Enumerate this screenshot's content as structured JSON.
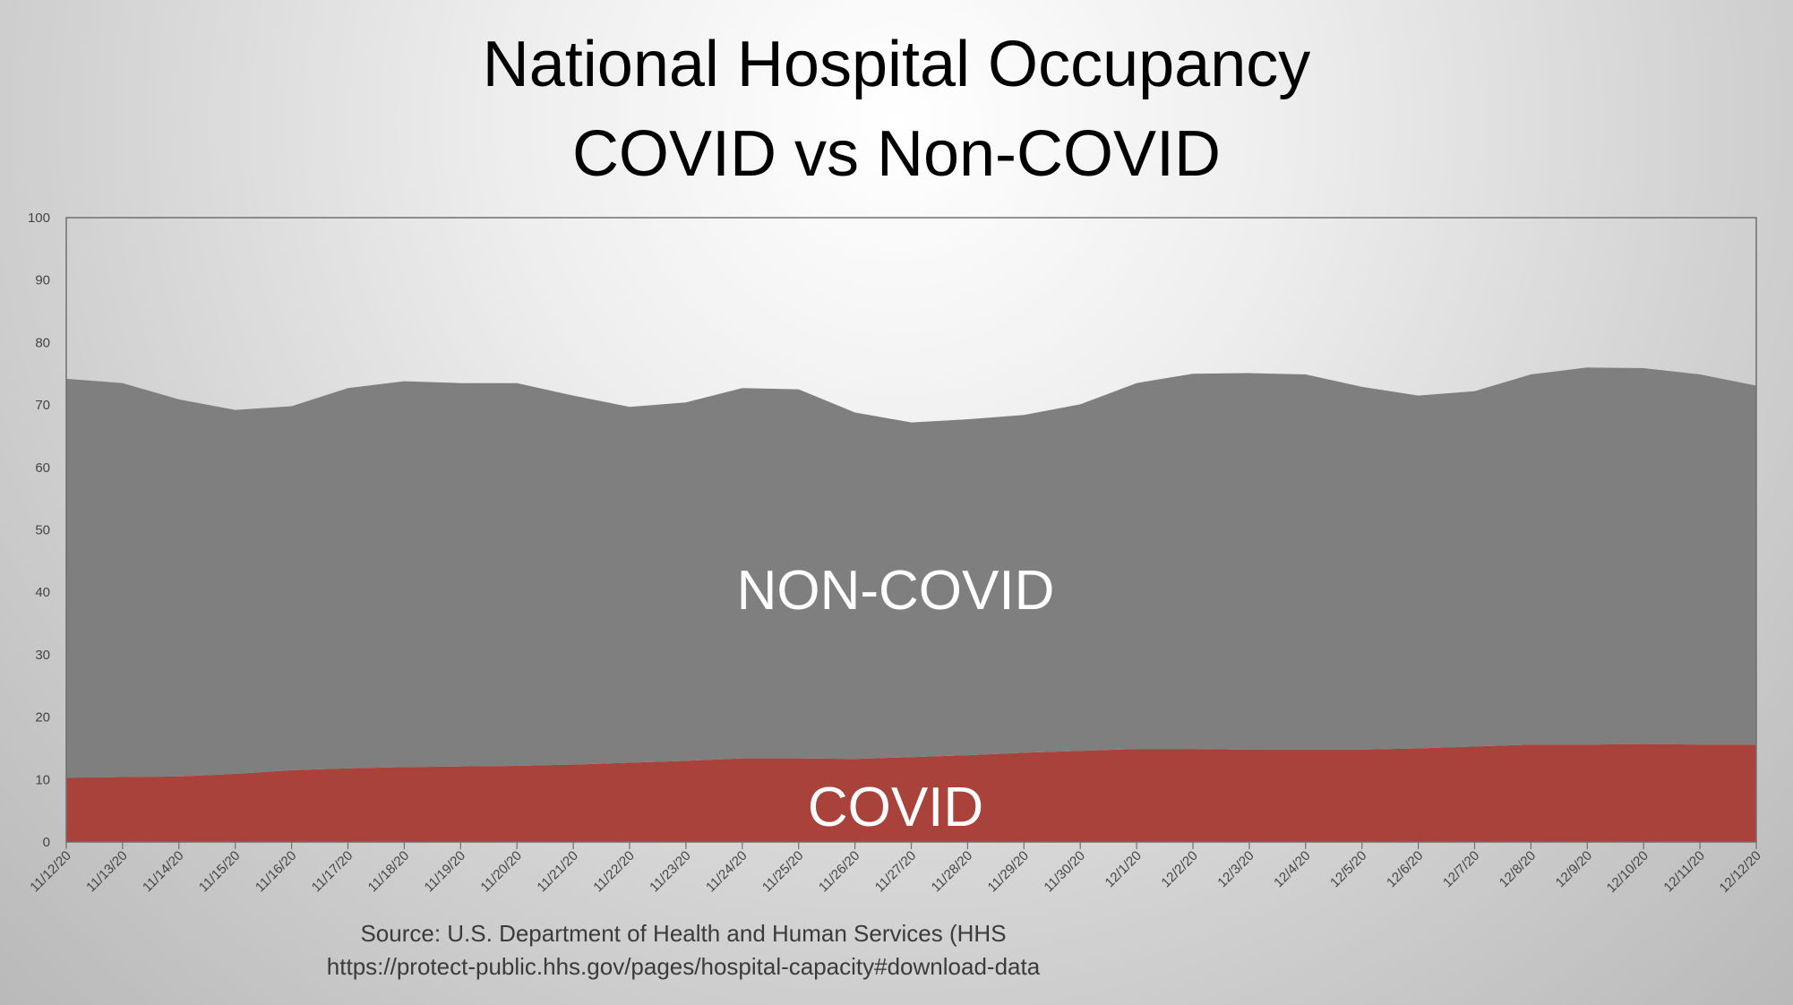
{
  "chart_data": {
    "type": "area",
    "title": [
      "National Hospital Occupancy",
      "COVID vs Non-COVID"
    ],
    "xlabel": "",
    "ylabel": "",
    "ylim": [
      0,
      100
    ],
    "yticks": [
      0,
      10,
      20,
      30,
      40,
      50,
      60,
      70,
      80,
      90,
      100
    ],
    "grid": false,
    "stacked": true,
    "x": [
      "11/12/20",
      "11/13/20",
      "11/14/20",
      "11/15/20",
      "11/16/20",
      "11/17/20",
      "11/18/20",
      "11/19/20",
      "11/20/20",
      "11/21/20",
      "11/22/20",
      "11/23/20",
      "11/24/20",
      "11/25/20",
      "11/26/20",
      "11/27/20",
      "11/28/20",
      "11/29/20",
      "11/30/20",
      "12/1/20",
      "12/2/20",
      "12/3/20",
      "12/4/20",
      "12/5/20",
      "12/6/20",
      "12/7/20",
      "12/8/20",
      "12/9/20",
      "12/10/20",
      "12/11/20",
      "12/12/20"
    ],
    "series": [
      {
        "name": "COVID",
        "color": "#a8423b",
        "values": [
          10.3,
          10.4,
          10.5,
          10.9,
          11.5,
          11.8,
          12.0,
          12.1,
          12.2,
          12.4,
          12.7,
          13.0,
          13.4,
          13.4,
          13.3,
          13.6,
          13.9,
          14.3,
          14.6,
          14.9,
          14.9,
          14.8,
          14.8,
          14.8,
          15.0,
          15.3,
          15.6,
          15.6,
          15.7,
          15.6,
          15.6
        ]
      },
      {
        "name": "NON-COVID",
        "color": "#7f7f7f",
        "values": [
          63.9,
          63.1,
          60.4,
          58.3,
          58.3,
          60.9,
          61.8,
          61.4,
          61.3,
          59.1,
          57.0,
          57.4,
          59.3,
          59.1,
          55.5,
          53.6,
          53.8,
          54.1,
          55.5,
          58.6,
          60.1,
          60.3,
          60.1,
          58.1,
          56.5,
          56.9,
          59.3,
          60.4,
          60.2,
          59.3,
          57.5
        ]
      }
    ],
    "annotations": [
      "NON-COVID",
      "COVID"
    ]
  },
  "source": {
    "line1": "Source: U.S. Department of Health and Human Services (HHS",
    "line2": "https://protect-public.hhs.gov/pages/hospital-capacity#download-data"
  }
}
